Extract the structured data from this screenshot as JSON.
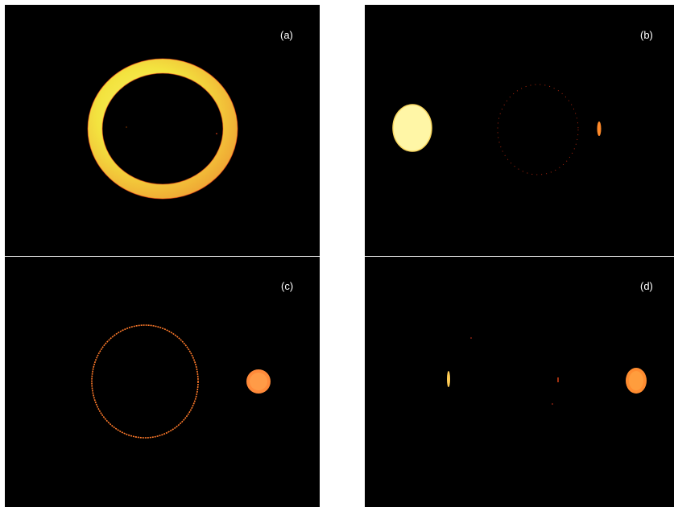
{
  "panels": [
    {
      "label": "(a)"
    },
    {
      "label": "(b)"
    },
    {
      "label": "(c)"
    },
    {
      "label": "(d)"
    }
  ],
  "colors": {
    "background": "#000000",
    "separator": "#ffffff",
    "bright_yellow": "#f6ef4a",
    "pale_yellow": "#fff5a8",
    "orange": "#ff9a2a",
    "red_orange": "#ff5a1e",
    "label": "#ffffff"
  }
}
